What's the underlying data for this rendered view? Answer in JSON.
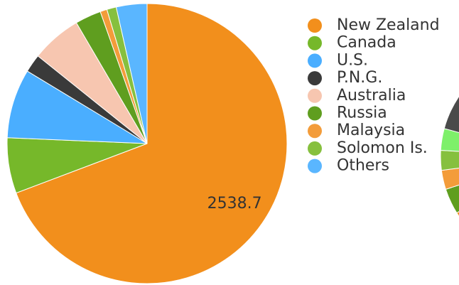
{
  "chart_data": [
    {
      "type": "pie",
      "categories": [
        "New Zealand",
        "Canada",
        "U.S.",
        "P.N.G.",
        "Australia",
        "Russia",
        "Malaysia",
        "Solomon Is.",
        "Others"
      ],
      "values": [
        2538.7,
        235,
        293,
        77,
        213,
        110,
        29,
        40,
        130
      ],
      "value_labels": [
        "2538.7",
        null,
        null,
        null,
        null,
        null,
        null,
        null,
        null
      ],
      "colors": [
        "#f28f1c",
        "#76b82a",
        "#4aaeff",
        "#3a3a3a",
        "#f7c6b0",
        "#5f9e1f",
        "#f39c3a",
        "#86c03e",
        "#5ab6ff"
      ],
      "legend": "right"
    },
    {
      "type": "pie",
      "values": [
        66.1,
        3.9,
        2.9,
        3.0,
        3.3,
        20.8
      ],
      "colors": [
        "#f28f1c",
        "#5f9e1f",
        "#f39c3a",
        "#86c03e",
        "#7ef06a",
        "#4a4a4a"
      ]
    }
  ]
}
